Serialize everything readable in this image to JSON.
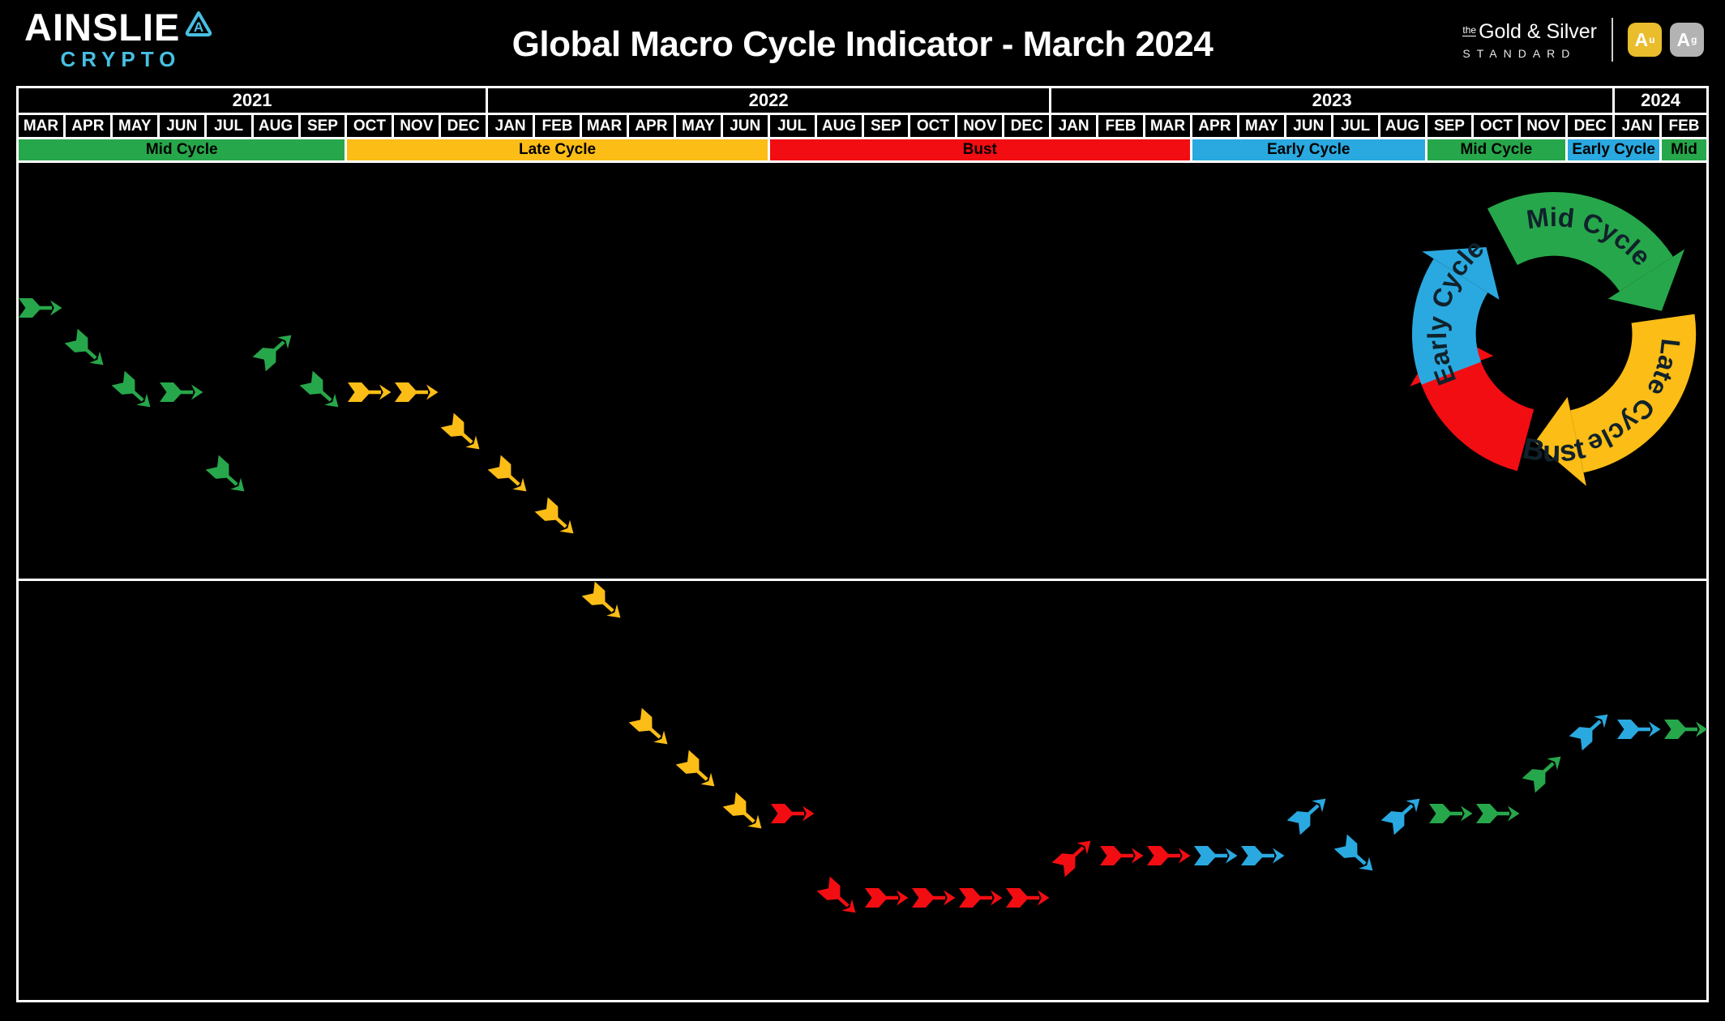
{
  "header": {
    "brand": {
      "name": "AINSLIE",
      "sub": "CRYPTO",
      "badge": "triangle-a"
    },
    "title": "Global Macro Cycle Indicator - March 2024",
    "partner": {
      "prefix": "the",
      "line1": "Gold & Silver",
      "line2": "STANDARD",
      "icons": [
        {
          "symbol": "A",
          "sup": "u",
          "bg": "#E9BD2C"
        },
        {
          "symbol": "A",
          "sup": "g",
          "bg": "#B3B3B3"
        }
      ]
    }
  },
  "colors": {
    "green": "#27A74B",
    "yellow": "#FBBD16",
    "red": "#F20D12",
    "blue": "#2AA9E0",
    "cyan": "#47BFE2"
  },
  "timeline": {
    "years": [
      {
        "label": "2021",
        "months": 10
      },
      {
        "label": "2022",
        "months": 12
      },
      {
        "label": "2023",
        "months": 12
      },
      {
        "label": "2024",
        "months": 2
      }
    ],
    "months": [
      "MAR",
      "APR",
      "MAY",
      "JUN",
      "JUL",
      "AUG",
      "SEP",
      "OCT",
      "NOV",
      "DEC",
      "JAN",
      "FEB",
      "MAR",
      "APR",
      "MAY",
      "JUN",
      "JUL",
      "AUG",
      "SEP",
      "OCT",
      "NOV",
      "DEC",
      "JAN",
      "FEB",
      "MAR",
      "APR",
      "MAY",
      "JUN",
      "JUL",
      "AUG",
      "SEP",
      "OCT",
      "NOV",
      "DEC",
      "JAN",
      "FEB"
    ],
    "phases": [
      {
        "label": "Mid Cycle",
        "color": "green",
        "months": 7
      },
      {
        "label": "Late Cycle",
        "color": "yellow",
        "months": 9
      },
      {
        "label": "Bust",
        "color": "red",
        "months": 9
      },
      {
        "label": "Early Cycle",
        "color": "blue",
        "months": 5
      },
      {
        "label": "Mid Cycle",
        "color": "green",
        "months": 3
      },
      {
        "label": "Early Cycle",
        "color": "blue",
        "months": 2
      },
      {
        "label": "Mid",
        "color": "green",
        "months": 1
      }
    ]
  },
  "chart_data": {
    "type": "timeline-arrows",
    "title": "Global Macro Cycle Indicator - March 2024",
    "x_start": "MAR 2021",
    "x_end": "FEB 2024",
    "level_note": "level 0 = highest position, level 14 = lowest; one arrow per month",
    "arrows": [
      {
        "month": "MAR 2021",
        "phase": "mid",
        "color": "green",
        "direction": "right",
        "level": 0
      },
      {
        "month": "APR 2021",
        "phase": "mid",
        "color": "green",
        "direction": "down-right",
        "level": 1
      },
      {
        "month": "MAY 2021",
        "phase": "mid",
        "color": "green",
        "direction": "down-right",
        "level": 2
      },
      {
        "month": "JUN 2021",
        "phase": "mid",
        "color": "green",
        "direction": "right",
        "level": 2
      },
      {
        "month": "JUL 2021",
        "phase": "mid",
        "color": "green",
        "direction": "down-right",
        "level": 4
      },
      {
        "month": "AUG 2021",
        "phase": "mid",
        "color": "green",
        "direction": "up-right",
        "level": 1
      },
      {
        "month": "SEP 2021",
        "phase": "mid",
        "color": "green",
        "direction": "down-right",
        "level": 2
      },
      {
        "month": "OCT 2021",
        "phase": "late",
        "color": "yellow",
        "direction": "right",
        "level": 2
      },
      {
        "month": "NOV 2021",
        "phase": "late",
        "color": "yellow",
        "direction": "right",
        "level": 2
      },
      {
        "month": "DEC 2021",
        "phase": "late",
        "color": "yellow",
        "direction": "down-right",
        "level": 3
      },
      {
        "month": "JAN 2022",
        "phase": "late",
        "color": "yellow",
        "direction": "down-right",
        "level": 4
      },
      {
        "month": "FEB 2022",
        "phase": "late",
        "color": "yellow",
        "direction": "down-right",
        "level": 5
      },
      {
        "month": "MAR 2022",
        "phase": "late",
        "color": "yellow",
        "direction": "down-right",
        "level": 7
      },
      {
        "month": "APR 2022",
        "phase": "late",
        "color": "yellow",
        "direction": "down-right",
        "level": 10
      },
      {
        "month": "MAY 2022",
        "phase": "late",
        "color": "yellow",
        "direction": "down-right",
        "level": 11
      },
      {
        "month": "JUN 2022",
        "phase": "late",
        "color": "yellow",
        "direction": "down-right",
        "level": 12
      },
      {
        "month": "JUL 2022",
        "phase": "bust",
        "color": "red",
        "direction": "right",
        "level": 12
      },
      {
        "month": "AUG 2022",
        "phase": "bust",
        "color": "red",
        "direction": "down-right",
        "level": 14
      },
      {
        "month": "SEP 2022",
        "phase": "bust",
        "color": "red",
        "direction": "right",
        "level": 14
      },
      {
        "month": "OCT 2022",
        "phase": "bust",
        "color": "red",
        "direction": "right",
        "level": 14
      },
      {
        "month": "NOV 2022",
        "phase": "bust",
        "color": "red",
        "direction": "right",
        "level": 14
      },
      {
        "month": "DEC 2022",
        "phase": "bust",
        "color": "red",
        "direction": "right",
        "level": 14
      },
      {
        "month": "JAN 2023",
        "phase": "bust",
        "color": "red",
        "direction": "up-right",
        "level": 13
      },
      {
        "month": "FEB 2023",
        "phase": "bust",
        "color": "red",
        "direction": "right",
        "level": 13
      },
      {
        "month": "MAR 2023",
        "phase": "bust",
        "color": "red",
        "direction": "right",
        "level": 13
      },
      {
        "month": "APR 2023",
        "phase": "early",
        "color": "blue",
        "direction": "right",
        "level": 13
      },
      {
        "month": "MAY 2023",
        "phase": "early",
        "color": "blue",
        "direction": "right",
        "level": 13
      },
      {
        "month": "JUN 2023",
        "phase": "early",
        "color": "blue",
        "direction": "up-right",
        "level": 12
      },
      {
        "month": "JUL 2023",
        "phase": "early",
        "color": "blue",
        "direction": "down-right",
        "level": 13
      },
      {
        "month": "AUG 2023",
        "phase": "early",
        "color": "blue",
        "direction": "up-right",
        "level": 12
      },
      {
        "month": "SEP 2023",
        "phase": "mid",
        "color": "green",
        "direction": "right",
        "level": 12
      },
      {
        "month": "OCT 2023",
        "phase": "mid",
        "color": "green",
        "direction": "right",
        "level": 12
      },
      {
        "month": "NOV 2023",
        "phase": "mid",
        "color": "green",
        "direction": "up-right",
        "level": 11
      },
      {
        "month": "DEC 2023",
        "phase": "early",
        "color": "blue",
        "direction": "up-right",
        "level": 10
      },
      {
        "month": "JAN 2024",
        "phase": "early",
        "color": "blue",
        "direction": "right",
        "level": 10
      },
      {
        "month": "FEB 2024",
        "phase": "mid",
        "color": "green",
        "direction": "right",
        "level": 10
      }
    ]
  },
  "cycle_diagram": {
    "labels": {
      "mid": "Mid Cycle",
      "late": "Late Cycle",
      "bust": "Bust",
      "early": "Early Cycle"
    }
  }
}
